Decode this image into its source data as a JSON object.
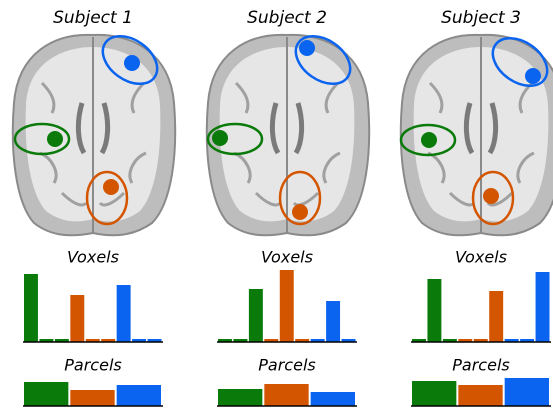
{
  "subjects": [
    "Subject 1",
    "Subject 2",
    "Subject 3"
  ],
  "chart_data": [
    {
      "type": "bar",
      "title": "Voxels",
      "values": [
        68,
        3,
        3,
        47,
        3,
        3,
        57,
        3,
        3
      ],
      "colors": [
        "#0a7a0a",
        "#0a7a0a",
        "#0a7a0a",
        "#d45500",
        "#d45500",
        "#d45500",
        "#0a64f0",
        "#0a64f0",
        "#0a64f0"
      ],
      "ylim": [
        0,
        72
      ]
    },
    {
      "type": "bar",
      "title": "Voxels",
      "values": [
        3,
        3,
        53,
        3,
        72,
        3,
        3,
        41,
        3
      ],
      "colors": [
        "#0a7a0a",
        "#0a7a0a",
        "#0a7a0a",
        "#d45500",
        "#d45500",
        "#d45500",
        "#0a64f0",
        "#0a64f0",
        "#0a64f0"
      ],
      "ylim": [
        0,
        72
      ]
    },
    {
      "type": "bar",
      "title": "Voxels",
      "values": [
        3,
        63,
        3,
        3,
        3,
        51,
        3,
        3,
        70
      ],
      "colors": [
        "#0a7a0a",
        "#0a7a0a",
        "#0a7a0a",
        "#d45500",
        "#d45500",
        "#d45500",
        "#0a64f0",
        "#0a64f0",
        "#0a64f0"
      ],
      "ylim": [
        0,
        72
      ]
    },
    {
      "type": "bar",
      "title": "Parcels",
      "values": [
        24,
        16,
        21
      ],
      "colors": [
        "#0a7a0a",
        "#d45500",
        "#0a64f0"
      ],
      "ylim": [
        0,
        30
      ]
    },
    {
      "type": "bar",
      "title": "Parcels",
      "values": [
        17,
        22,
        14
      ],
      "colors": [
        "#0a7a0a",
        "#d45500",
        "#0a64f0"
      ],
      "ylim": [
        0,
        30
      ]
    },
    {
      "type": "bar",
      "title": "Parcels",
      "values": [
        25,
        21,
        28
      ],
      "colors": [
        "#0a7a0a",
        "#d45500",
        "#0a64f0"
      ],
      "ylim": [
        0,
        30
      ]
    }
  ]
}
